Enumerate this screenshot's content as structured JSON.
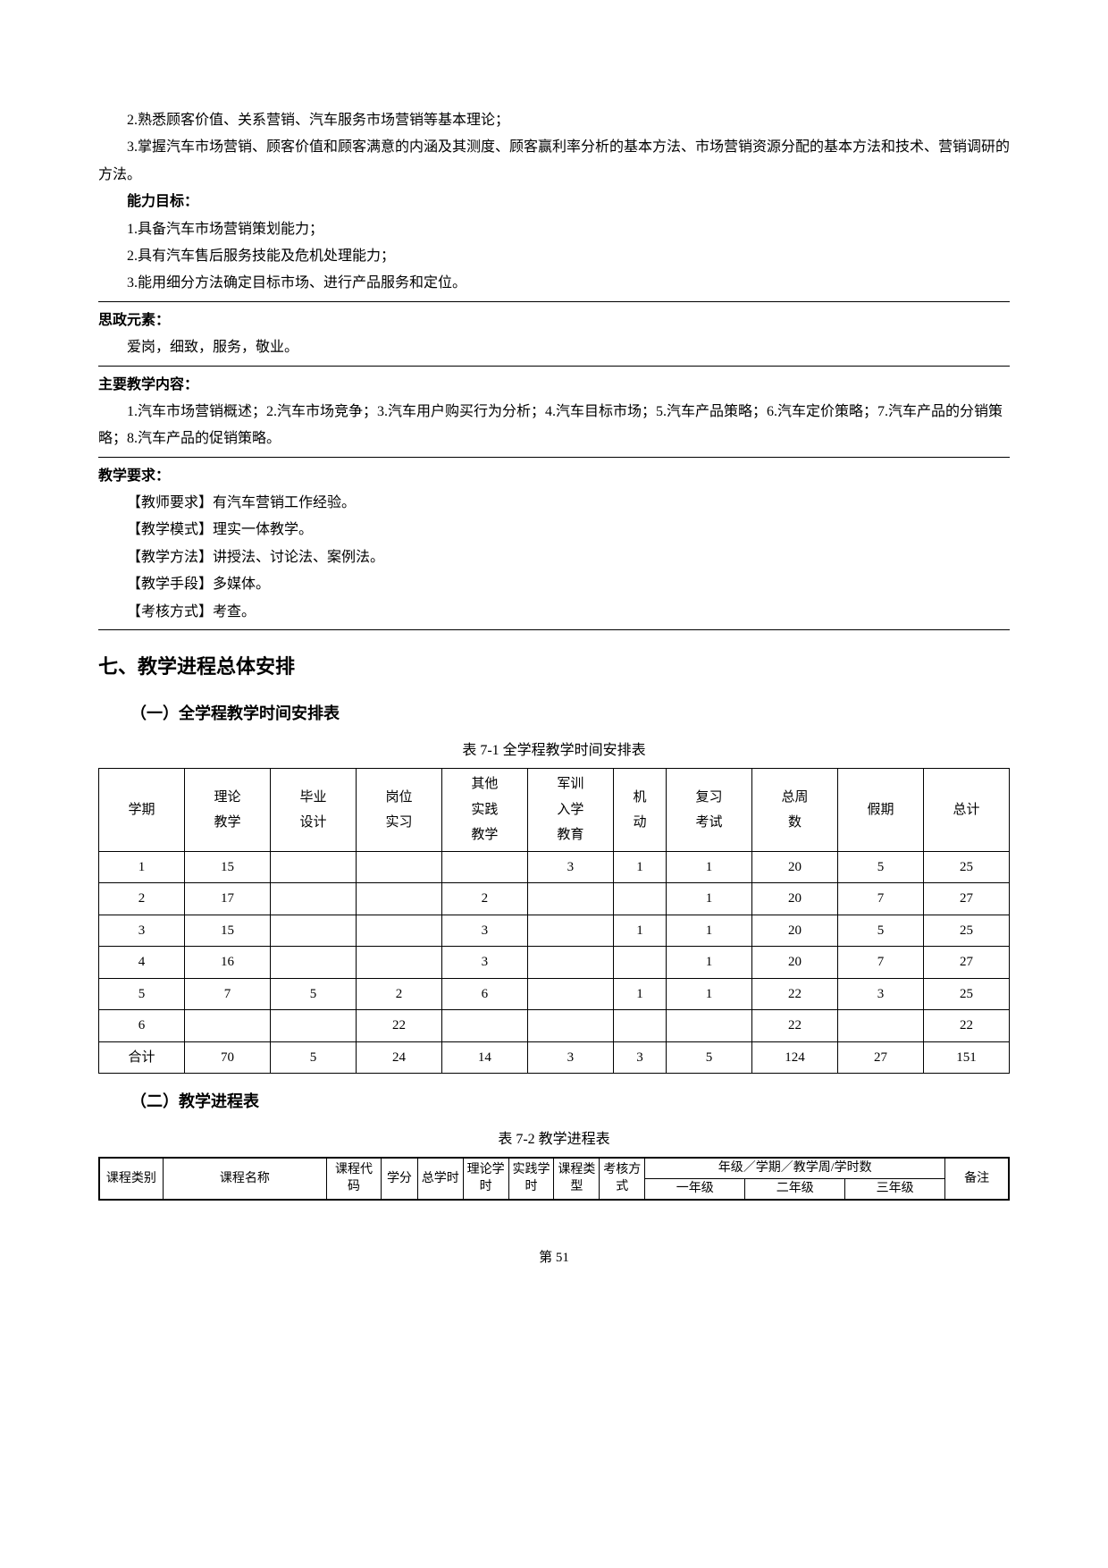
{
  "paragraphs": {
    "p1": "2.熟悉顾客价值、关系营销、汽车服务市场营销等基本理论；",
    "p2": "3.掌握汽车市场营销、顾客价值和顾客满意的内涵及其测度、顾客赢利率分析的基本方法、市场营销资源分配的基本方法和技术、营销调研的方法。",
    "ability_label": "能力目标：",
    "a1": "1.具备汽车市场营销策划能力；",
    "a2": "2.具有汽车售后服务技能及危机处理能力；",
    "a3": "3.能用细分方法确定目标市场、进行产品服务和定位。",
    "ideology_label": "思政元素：",
    "ideology_text": "爱岗，细致，服务，敬业。",
    "content_label": "主要教学内容：",
    "content_text": "1.汽车市场营销概述；2.汽车市场竞争；3.汽车用户购买行为分析；4.汽车目标市场；5.汽车产品策略；6.汽车定价策略；7.汽车产品的分销策略；8.汽车产品的促销策略。",
    "req_label": "教学要求：",
    "r1": "【教师要求】有汽车营销工作经验。",
    "r2": "【教学模式】理实一体教学。",
    "r3": "【教学方法】讲授法、讨论法、案例法。",
    "r4": "【教学手段】多媒体。",
    "r5": "【考核方式】考查。"
  },
  "headings": {
    "h1": "七、教学进程总体安排",
    "h2a": "（一）全学程教学时间安排表",
    "caption1": "表 7-1  全学程教学时间安排表",
    "h2b": "（二）教学进程表",
    "caption2": "表 7-2 教学进程表"
  },
  "table1": {
    "headers": [
      "学期",
      "理论教学",
      "毕业设计",
      "岗位实习",
      "其他实践教学",
      "军训入学教育",
      "机动",
      "复习考试",
      "总周数",
      "假期",
      "总计"
    ],
    "rows": [
      [
        "1",
        "15",
        "",
        "",
        "",
        "3",
        "1",
        "1",
        "20",
        "5",
        "25"
      ],
      [
        "2",
        "17",
        "",
        "",
        "2",
        "",
        "",
        "1",
        "20",
        "7",
        "27"
      ],
      [
        "3",
        "15",
        "",
        "",
        "3",
        "",
        "1",
        "1",
        "20",
        "5",
        "25"
      ],
      [
        "4",
        "16",
        "",
        "",
        "3",
        "",
        "",
        "1",
        "20",
        "7",
        "27"
      ],
      [
        "5",
        "7",
        "5",
        "2",
        "6",
        "",
        "1",
        "1",
        "22",
        "3",
        "25"
      ],
      [
        "6",
        "",
        "",
        "22",
        "",
        "",
        "",
        "",
        "22",
        "",
        "22"
      ],
      [
        "合计",
        "70",
        "5",
        "24",
        "14",
        "3",
        "3",
        "5",
        "124",
        "27",
        "151"
      ]
    ],
    "col_widths": [
      "8%",
      "8%",
      "8%",
      "8%",
      "8%",
      "8%",
      "8%",
      "8%",
      "8%",
      "8%",
      "8%"
    ]
  },
  "table2": {
    "top_headers": {
      "c1": "课程类别",
      "c2": "课程名称",
      "c3": "课程代码",
      "c4": "学分",
      "c5": "总学时",
      "c6": "理论学时",
      "c7": "实践学时",
      "c8": "课程类型",
      "c9": "考核方式",
      "c10": "年级／学期／教学周/学时数",
      "c11": "备注",
      "sub1": "一年级",
      "sub2": "二年级",
      "sub3": "三年级"
    }
  },
  "page_number": "第 51"
}
